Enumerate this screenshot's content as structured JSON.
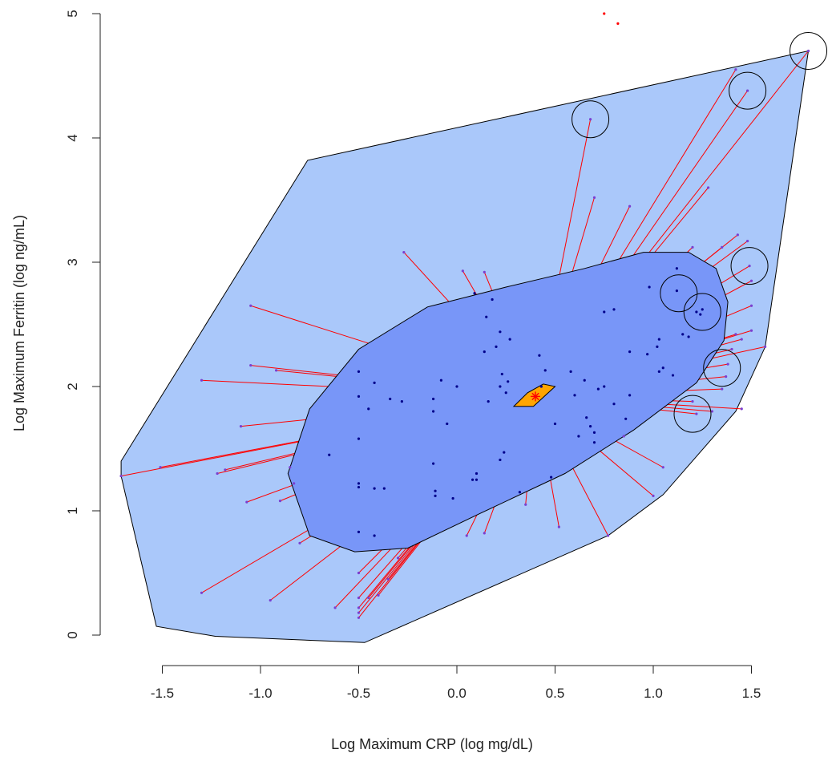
{
  "chart_data": {
    "type": "scatter",
    "subtype": "bagplot",
    "title": "",
    "xlabel": "Log Maximum CRP (log mg/dL)",
    "ylabel": "Log Maximum Ferritin (log ng/mL)",
    "xlim": [
      -1.75,
      1.85
    ],
    "ylim": [
      -0.05,
      5.05
    ],
    "x_ticks": [
      -1.5,
      -1.0,
      -0.5,
      0.0,
      0.5,
      1.0,
      1.5
    ],
    "x_tick_labels": [
      "-1.5",
      "-1.0",
      "-0.5",
      "0.0",
      "0.5",
      "1.0",
      "1.5"
    ],
    "y_ticks": [
      0,
      1,
      2,
      3,
      4,
      5
    ],
    "y_tick_labels": [
      "0",
      "1",
      "2",
      "3",
      "4",
      "5"
    ],
    "grid": false,
    "legend": "none",
    "colors": {
      "fence": "#aac8fa",
      "bag": "#7896f8",
      "loop_outline": "#000000",
      "whisker": "#ff0000",
      "point": "#00008b",
      "outside_point": "#ff0000",
      "center_fill": "#ffa500",
      "median_marker": "#ff0000",
      "outlier_circle": "#000000"
    },
    "center": [
      0.4,
      1.92
    ],
    "center_polygon": [
      [
        0.29,
        1.84
      ],
      [
        0.39,
        1.84
      ],
      [
        0.5,
        2.0
      ],
      [
        0.44,
        2.02
      ],
      [
        0.36,
        1.95
      ]
    ],
    "bag": [
      [
        -0.86,
        1.3
      ],
      [
        -0.75,
        0.8
      ],
      [
        -0.52,
        0.67
      ],
      [
        -0.25,
        0.7
      ],
      [
        0.12,
        0.98
      ],
      [
        0.55,
        1.3
      ],
      [
        0.9,
        1.65
      ],
      [
        1.22,
        2.03
      ],
      [
        1.36,
        2.37
      ],
      [
        1.38,
        2.68
      ],
      [
        1.32,
        2.95
      ],
      [
        1.18,
        3.08
      ],
      [
        0.95,
        3.08
      ],
      [
        0.65,
        2.95
      ],
      [
        0.25,
        2.8
      ],
      [
        -0.15,
        2.64
      ],
      [
        -0.5,
        2.3
      ],
      [
        -0.75,
        1.82
      ]
    ],
    "loop": [
      [
        -1.71,
        1.4
      ],
      [
        -0.76,
        3.82
      ],
      [
        1.79,
        4.7
      ],
      [
        1.57,
        2.32
      ],
      [
        1.42,
        1.8
      ],
      [
        1.05,
        1.13
      ],
      [
        0.77,
        0.8
      ],
      [
        -0.47,
        -0.06
      ],
      [
        -1.23,
        -0.01
      ],
      [
        -1.53,
        0.07
      ],
      [
        -1.71,
        1.28
      ]
    ],
    "inside_points": [
      [
        -0.5,
        2.12
      ],
      [
        -0.5,
        1.92
      ],
      [
        -0.5,
        1.58
      ],
      [
        -0.5,
        1.22
      ],
      [
        -0.5,
        1.19
      ],
      [
        -0.5,
        0.83
      ],
      [
        -0.45,
        1.82
      ],
      [
        -0.42,
        2.03
      ],
      [
        -0.42,
        1.18
      ],
      [
        -0.42,
        0.8
      ],
      [
        -0.37,
        1.18
      ],
      [
        -0.34,
        1.9
      ],
      [
        -0.28,
        1.88
      ],
      [
        -0.65,
        1.45
      ],
      [
        -0.12,
        1.9
      ],
      [
        -0.12,
        1.8
      ],
      [
        -0.12,
        1.38
      ],
      [
        -0.11,
        1.16
      ],
      [
        -0.11,
        1.12
      ],
      [
        -0.08,
        2.05
      ],
      [
        -0.05,
        1.7
      ],
      [
        -0.02,
        1.1
      ],
      [
        0.0,
        2.0
      ],
      [
        0.08,
        1.25
      ],
      [
        0.1,
        1.3
      ],
      [
        0.1,
        1.25
      ],
      [
        0.09,
        2.75
      ],
      [
        0.15,
        2.56
      ],
      [
        0.18,
        2.7
      ],
      [
        0.2,
        2.32
      ],
      [
        0.22,
        2.0
      ],
      [
        0.22,
        2.44
      ],
      [
        0.23,
        2.1
      ],
      [
        0.25,
        1.95
      ],
      [
        0.26,
        2.04
      ],
      [
        0.27,
        2.38
      ],
      [
        0.14,
        2.28
      ],
      [
        0.16,
        1.88
      ],
      [
        0.22,
        1.41
      ],
      [
        0.24,
        1.47
      ],
      [
        0.32,
        1.15
      ],
      [
        0.42,
        2.25
      ],
      [
        0.43,
        2.0
      ],
      [
        0.45,
        2.13
      ],
      [
        0.48,
        1.27
      ],
      [
        0.5,
        1.7
      ],
      [
        0.58,
        2.12
      ],
      [
        0.6,
        1.93
      ],
      [
        0.62,
        1.6
      ],
      [
        0.65,
        2.05
      ],
      [
        0.66,
        1.75
      ],
      [
        0.68,
        1.68
      ],
      [
        0.7,
        1.55
      ],
      [
        0.7,
        1.63
      ],
      [
        0.72,
        1.98
      ],
      [
        0.75,
        2.0
      ],
      [
        0.75,
        2.6
      ],
      [
        0.8,
        1.86
      ],
      [
        0.8,
        2.62
      ],
      [
        0.86,
        1.74
      ],
      [
        0.88,
        1.93
      ],
      [
        0.88,
        2.28
      ],
      [
        0.97,
        2.26
      ],
      [
        0.98,
        2.8
      ],
      [
        1.02,
        2.32
      ],
      [
        1.03,
        2.12
      ],
      [
        1.03,
        2.38
      ],
      [
        1.05,
        2.15
      ],
      [
        1.1,
        2.09
      ],
      [
        1.12,
        2.95
      ],
      [
        1.12,
        2.77
      ],
      [
        1.15,
        2.42
      ],
      [
        1.18,
        2.4
      ],
      [
        1.22,
        2.6
      ],
      [
        1.24,
        2.58
      ],
      [
        1.25,
        2.62
      ]
    ],
    "outside_points": [
      [
        -1.71,
        1.28
      ],
      [
        -1.51,
        1.35
      ],
      [
        -1.3,
        2.05
      ],
      [
        -1.22,
        1.3
      ],
      [
        -1.18,
        1.33
      ],
      [
        -1.1,
        1.68
      ],
      [
        -1.07,
        1.07
      ],
      [
        -1.05,
        2.65
      ],
      [
        -1.05,
        2.17
      ],
      [
        -0.92,
        2.13
      ],
      [
        -0.9,
        1.08
      ],
      [
        -0.85,
        1.35
      ],
      [
        -0.83,
        1.22
      ],
      [
        -0.8,
        0.74
      ],
      [
        -1.3,
        0.34
      ],
      [
        -0.95,
        0.28
      ],
      [
        -0.62,
        0.22
      ],
      [
        -0.5,
        0.5
      ],
      [
        -0.5,
        0.3
      ],
      [
        -0.5,
        0.22
      ],
      [
        -0.5,
        0.18
      ],
      [
        -0.5,
        0.14
      ],
      [
        -0.45,
        0.3
      ],
      [
        -0.4,
        0.32
      ],
      [
        -0.35,
        0.45
      ],
      [
        -0.3,
        0.62
      ],
      [
        -0.27,
        3.08
      ],
      [
        0.03,
        2.93
      ],
      [
        0.14,
        2.92
      ],
      [
        0.05,
        0.8
      ],
      [
        0.14,
        0.82
      ],
      [
        0.35,
        1.05
      ],
      [
        0.52,
        0.87
      ],
      [
        0.77,
        0.8
      ],
      [
        0.85,
        1.6
      ],
      [
        1.0,
        1.12
      ],
      [
        1.05,
        1.35
      ],
      [
        0.68,
        4.15
      ],
      [
        0.7,
        3.52
      ],
      [
        0.88,
        3.45
      ],
      [
        1.28,
        3.6
      ],
      [
        1.48,
        4.38
      ],
      [
        1.42,
        4.55
      ],
      [
        1.35,
        3.12
      ],
      [
        1.2,
        3.12
      ],
      [
        1.43,
        3.22
      ],
      [
        1.48,
        3.17
      ],
      [
        1.49,
        2.97
      ],
      [
        1.5,
        2.85
      ],
      [
        1.5,
        2.65
      ],
      [
        1.5,
        2.45
      ],
      [
        1.42,
        2.42
      ],
      [
        1.45,
        2.38
      ],
      [
        1.4,
        2.3
      ],
      [
        1.38,
        2.18
      ],
      [
        1.37,
        2.08
      ],
      [
        1.35,
        1.98
      ],
      [
        1.45,
        1.82
      ],
      [
        1.3,
        1.8
      ],
      [
        1.22,
        1.78
      ],
      [
        1.2,
        1.88
      ],
      [
        1.57,
        2.32
      ],
      [
        1.79,
        4.7
      ]
    ],
    "far_points": [
      [
        0.75,
        5.0
      ],
      [
        0.82,
        4.92
      ]
    ],
    "outlier_circles": [
      [
        0.68,
        4.15
      ],
      [
        1.48,
        4.38
      ],
      [
        1.79,
        4.7
      ],
      [
        1.49,
        2.97
      ],
      [
        1.13,
        2.75
      ],
      [
        1.25,
        2.6
      ],
      [
        1.35,
        2.15
      ],
      [
        1.2,
        1.78
      ]
    ]
  }
}
